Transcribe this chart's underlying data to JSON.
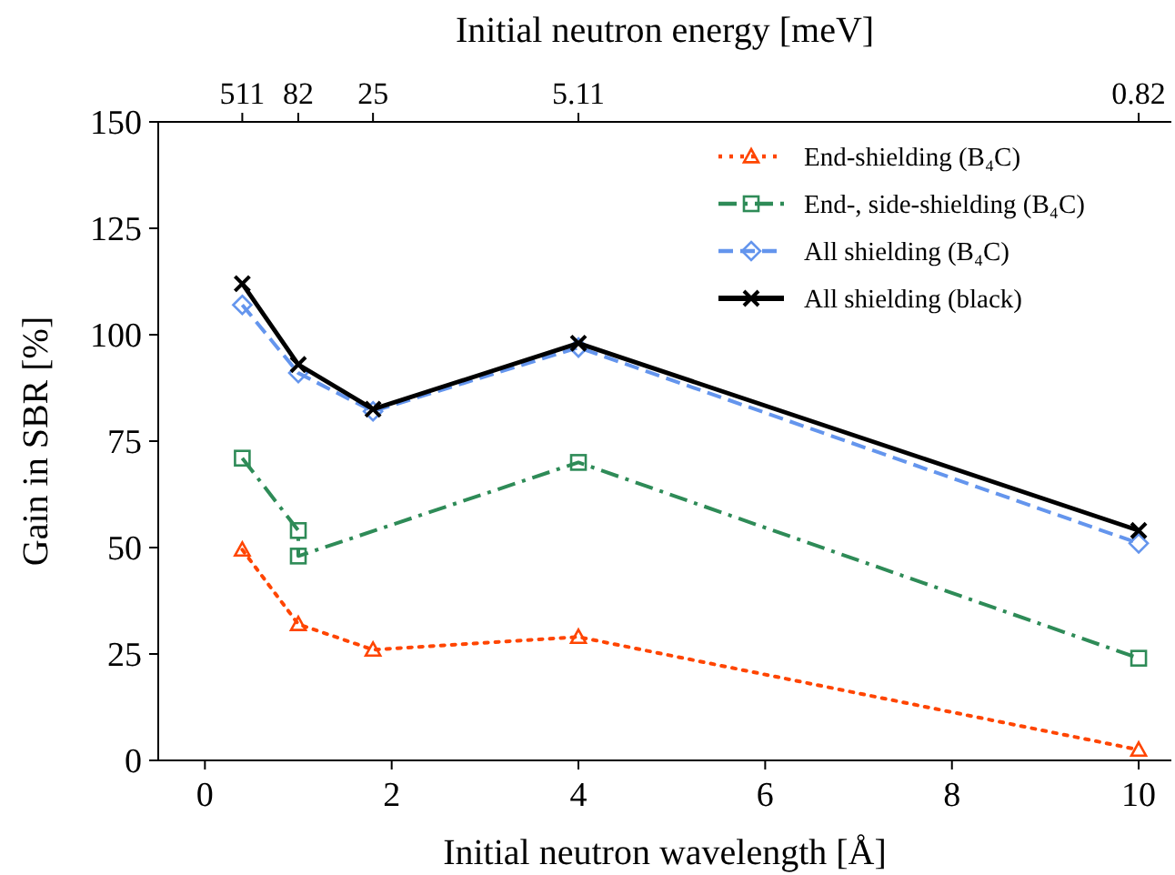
{
  "chart_data": {
    "type": "line",
    "xlabel": "Initial neutron wavelength [Å]",
    "ylabel": "Gain in SBR [%]",
    "x2label": "Initial neutron energy [meV]",
    "xlim": [
      -0.5,
      10.35
    ],
    "xticks": [
      0,
      2,
      4,
      6,
      8,
      10
    ],
    "annotations": [
      "511",
      "82",
      "25",
      "5.11",
      "0.82"
    ],
    "ylim": [
      0,
      150
    ],
    "yticks": [
      0,
      25,
      50,
      75,
      100,
      125,
      150
    ],
    "grid": false,
    "legend": "top right",
    "series": [
      {
        "name": "End-shielding (B₄C)",
        "color": "#ff4500",
        "marker": "triangle",
        "line_style": "dotted",
        "x": [
          0.4,
          1,
          1.8,
          4,
          10
        ],
        "values": [
          49.5,
          32,
          26,
          29,
          2.5
        ]
      },
      {
        "name": "End-, side-shielding (B₄C)",
        "color": "#2e8b57",
        "marker": "square",
        "line_style": "dashdot",
        "x": [
          0.4,
          1,
          1,
          4,
          10
        ],
        "values": [
          71,
          54,
          48,
          70,
          24
        ]
      },
      {
        "name": "All shielding (B₄C)",
        "color": "#6495ed",
        "marker": "diamond",
        "line_style": "dashed",
        "x": [
          0.4,
          1,
          1.8,
          4,
          10
        ],
        "values": [
          107,
          91,
          82,
          97,
          51
        ]
      },
      {
        "name": "All shielding (black)",
        "color": "#000000",
        "marker": "cross",
        "line_style": "solid",
        "x": [
          0.4,
          1,
          1.8,
          4,
          10
        ],
        "values": [
          112,
          93,
          82.5,
          98,
          54
        ]
      }
    ]
  }
}
